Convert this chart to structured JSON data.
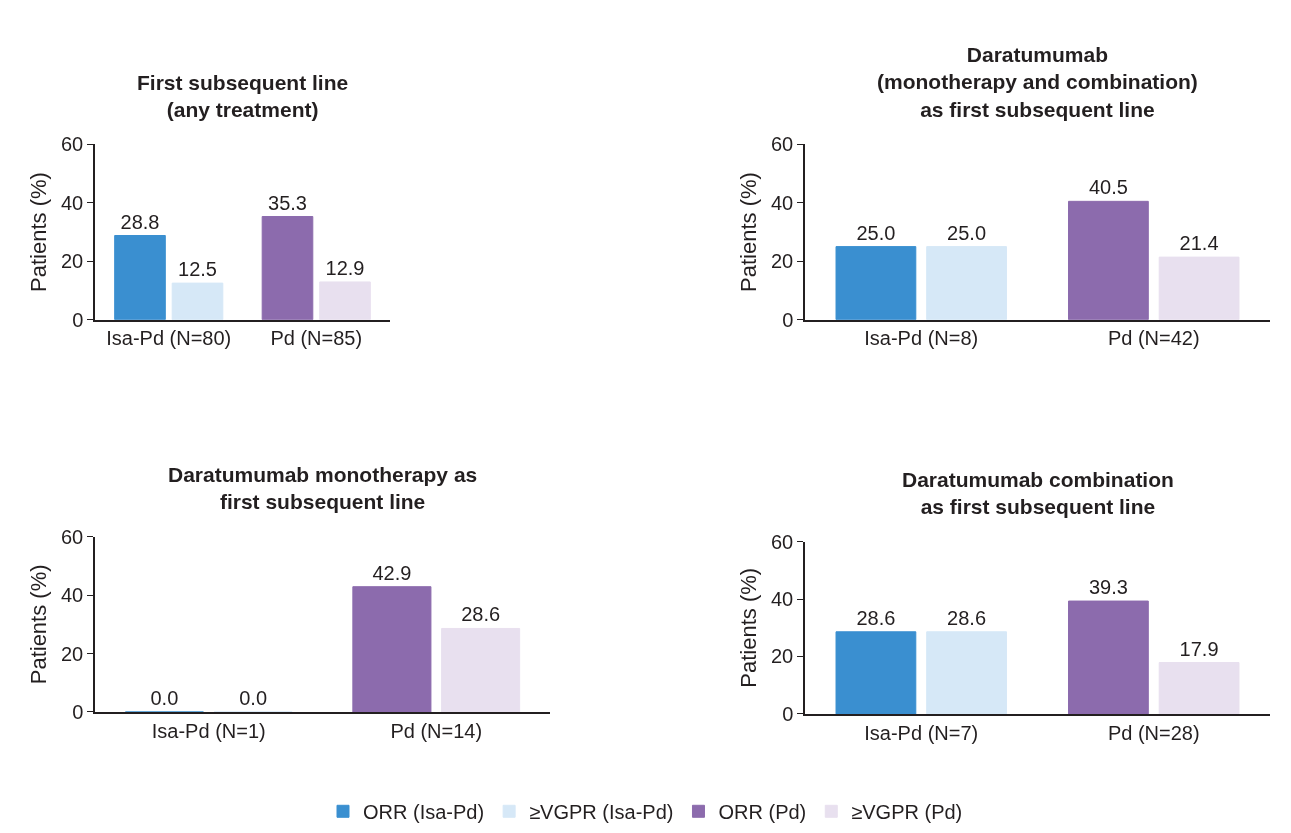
{
  "chart_data": [
    {
      "type": "bar",
      "title": "First subsequent line\n(any treatment)",
      "ylabel": "Patients (%)",
      "categories": [
        "Isa-Pd (N=80)",
        "Pd (N=85)"
      ],
      "ylim": [
        0,
        60
      ],
      "yticks": [
        0,
        20,
        40,
        60
      ],
      "series": [
        {
          "color": "#3a8fd0",
          "values": [
            28.8,
            null
          ],
          "value_labels": [
            "28.8",
            null
          ]
        },
        {
          "color": "#d6e8f7",
          "values": [
            12.5,
            null
          ],
          "value_labels": [
            "12.5",
            null
          ]
        },
        {
          "color": "#8c6bad",
          "values": [
            null,
            35.3
          ],
          "value_labels": [
            null,
            "35.3"
          ]
        },
        {
          "color": "#e8e0ef",
          "values": [
            null,
            12.9
          ],
          "value_labels": [
            null,
            "12.9"
          ]
        }
      ]
    },
    {
      "type": "bar",
      "title": "Daratumumab\n(monotherapy and combination)\nas first subsequent line",
      "ylabel": "Patients (%)",
      "categories": [
        "Isa-Pd (N=8)",
        "Pd (N=42)"
      ],
      "ylim": [
        0,
        60
      ],
      "yticks": [
        0,
        20,
        40,
        60
      ],
      "series": [
        {
          "color": "#3a8fd0",
          "values": [
            25,
            null
          ],
          "value_labels": [
            "25.0",
            null
          ]
        },
        {
          "color": "#d6e8f7",
          "values": [
            25,
            null
          ],
          "value_labels": [
            "25.0",
            null
          ]
        },
        {
          "color": "#8c6bad",
          "values": [
            null,
            40.5
          ],
          "value_labels": [
            null,
            "40.5"
          ]
        },
        {
          "color": "#e8e0ef",
          "values": [
            null,
            21.4
          ],
          "value_labels": [
            null,
            "21.4"
          ]
        }
      ]
    },
    {
      "type": "bar",
      "title": "Daratumumab monotherapy as\nfirst subsequent line",
      "ylabel": "Patients (%)",
      "categories": [
        "Isa-Pd (N=1)",
        "Pd (N=14)"
      ],
      "ylim": [
        0,
        60
      ],
      "yticks": [
        0,
        20,
        40,
        60
      ],
      "series": [
        {
          "color": "#3a8fd0",
          "values": [
            0,
            null
          ],
          "value_labels": [
            "0.0",
            null
          ]
        },
        {
          "color": "#d6e8f7",
          "values": [
            0,
            null
          ],
          "value_labels": [
            "0.0",
            null
          ]
        },
        {
          "color": "#8c6bad",
          "values": [
            null,
            42.9
          ],
          "value_labels": [
            null,
            "42.9"
          ]
        },
        {
          "color": "#e8e0ef",
          "values": [
            null,
            28.6
          ],
          "value_labels": [
            null,
            "28.6"
          ]
        }
      ]
    },
    {
      "type": "bar",
      "title": "Daratumumab combination\nas first subsequent line",
      "ylabel": "Patients (%)",
      "categories": [
        "Isa-Pd (N=7)",
        "Pd (N=28)"
      ],
      "ylim": [
        0,
        60
      ],
      "yticks": [
        0,
        20,
        40,
        60
      ],
      "legend": "bottom",
      "series": [
        {
          "name": "ORR (Isa-Pd)",
          "color": "#3a8fd0",
          "values": [
            28.6,
            null
          ],
          "value_labels": [
            "28.6",
            null
          ]
        },
        {
          "name": "≥VGPR (Isa-Pd)",
          "color": "#d6e8f7",
          "values": [
            28.6,
            null
          ],
          "value_labels": [
            "28.6",
            null
          ]
        },
        {
          "name": "ORR (Pd)",
          "color": "#8c6bad",
          "values": [
            null,
            39.3
          ],
          "value_labels": [
            null,
            "39.3"
          ]
        },
        {
          "name": "≥VGPR (Pd)",
          "color": "#e8e0ef",
          "values": [
            null,
            17.9
          ],
          "value_labels": [
            null,
            "17.9"
          ]
        }
      ]
    }
  ]
}
